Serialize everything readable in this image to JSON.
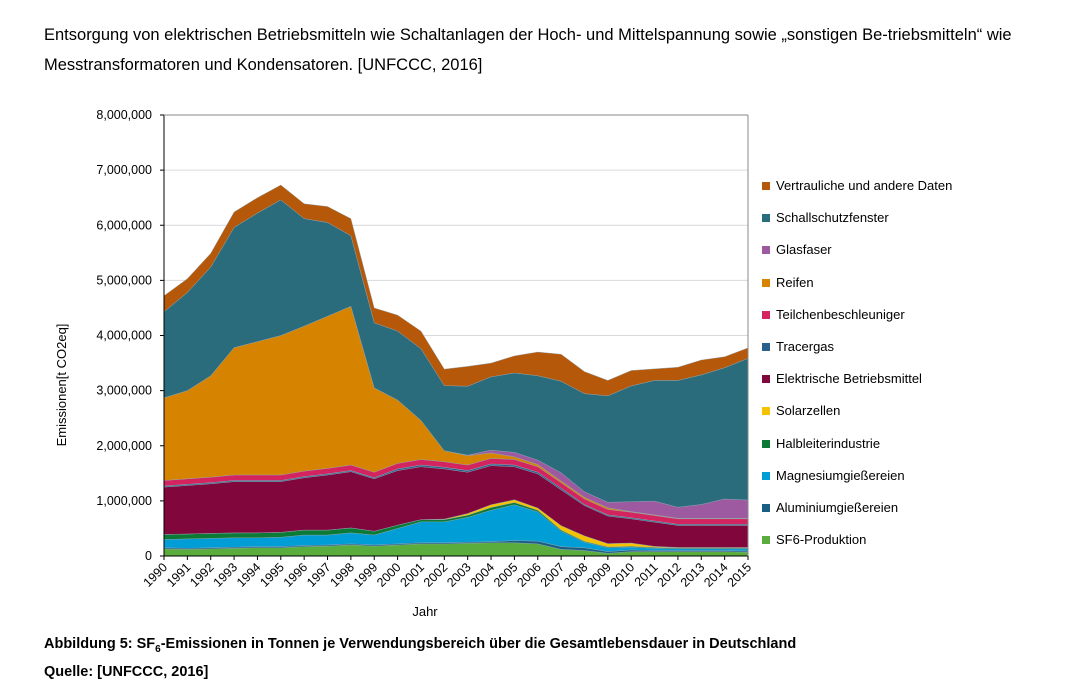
{
  "document": {
    "paragraph": "Entsorgung von elektrischen Betriebsmitteln wie Schaltanlagen der Hoch- und Mittelspannung sowie „sonstigen Be-triebsmitteln“ wie Messtransformatoren und Kondensatoren. [UNFCCC, 2016]",
    "caption_prefix": "Abbildung 5: SF",
    "caption_sub": "6",
    "caption_rest": "-Emissionen in Tonnen je Verwendungsbereich über die Gesamtlebensdauer in Deutschland",
    "source": "Quelle: [UNFCCC, 2016]"
  },
  "chart_data": {
    "type": "area",
    "stacked": true,
    "xlabel": "Jahr",
    "ylabel": "Emissionen[t CO2eq]",
    "ylim": [
      0,
      8000000
    ],
    "yticks": [
      "0",
      "1,000,000",
      "2,000,000",
      "3,000,000",
      "4,000,000",
      "5,000,000",
      "6,000,000",
      "7,000,000",
      "8,000,000"
    ],
    "grid": true,
    "legend_position": "right",
    "x": [
      1990,
      1991,
      1992,
      1993,
      1994,
      1995,
      1996,
      1997,
      1998,
      1999,
      2000,
      2001,
      2002,
      2003,
      2004,
      2005,
      2006,
      2007,
      2008,
      2009,
      2010,
      2011,
      2012,
      2013,
      2014,
      2015
    ],
    "series": [
      {
        "name": "SF6-Produktion",
        "color": "#5aac3c",
        "values": [
          130000,
          120000,
          130000,
          140000,
          150000,
          150000,
          170000,
          180000,
          200000,
          180000,
          200000,
          220000,
          220000,
          230000,
          240000,
          240000,
          220000,
          120000,
          100000,
          50000,
          80000,
          80000,
          80000,
          80000,
          80000,
          70000
        ]
      },
      {
        "name": "Aluminiumgießereien",
        "color": "#1a5e82",
        "values": [
          20000,
          20000,
          20000,
          20000,
          20000,
          20000,
          20000,
          20000,
          20000,
          20000,
          20000,
          20000,
          20000,
          20000,
          20000,
          40000,
          50000,
          50000,
          50000,
          30000,
          30000,
          20000,
          20000,
          20000,
          20000,
          20000
        ]
      },
      {
        "name": "Magnesiumgießereien",
        "color": "#009dd6",
        "values": [
          150000,
          170000,
          170000,
          170000,
          160000,
          170000,
          190000,
          180000,
          200000,
          180000,
          280000,
          380000,
          380000,
          450000,
          570000,
          650000,
          530000,
          280000,
          100000,
          70000,
          50000,
          40000,
          30000,
          30000,
          30000,
          40000
        ]
      },
      {
        "name": "Halbleiterindustrie",
        "color": "#0a7a35",
        "values": [
          90000,
          90000,
          90000,
          90000,
          90000,
          90000,
          90000,
          90000,
          90000,
          70000,
          60000,
          40000,
          40000,
          40000,
          50000,
          40000,
          30000,
          20000,
          15000,
          15000,
          15000,
          15000,
          15000,
          15000,
          15000,
          15000
        ]
      },
      {
        "name": "Solarzellen",
        "color": "#f5c200",
        "values": [
          0,
          0,
          0,
          0,
          0,
          0,
          0,
          0,
          0,
          0,
          0,
          0,
          10000,
          30000,
          50000,
          50000,
          40000,
          80000,
          100000,
          60000,
          60000,
          20000,
          10000,
          10000,
          10000,
          10000
        ]
      },
      {
        "name": "Elektrische Betriebsmittel",
        "color": "#80063b",
        "values": [
          860000,
          880000,
          900000,
          930000,
          930000,
          920000,
          950000,
          1000000,
          1020000,
          950000,
          990000,
          960000,
          910000,
          750000,
          710000,
          600000,
          620000,
          650000,
          550000,
          500000,
          440000,
          440000,
          400000,
          400000,
          400000,
          400000
        ]
      },
      {
        "name": "Tracergas",
        "color": "#2a5f8a",
        "values": [
          20000,
          20000,
          20000,
          20000,
          20000,
          20000,
          20000,
          20000,
          20000,
          20000,
          30000,
          30000,
          30000,
          30000,
          30000,
          30000,
          30000,
          30000,
          20000,
          20000,
          20000,
          20000,
          20000,
          20000,
          20000,
          20000
        ]
      },
      {
        "name": "Teilchenbeschleuniger",
        "color": "#d4245f",
        "values": [
          100000,
          100000,
          100000,
          100000,
          100000,
          100000,
          100000,
          100000,
          100000,
          100000,
          100000,
          100000,
          100000,
          100000,
          100000,
          100000,
          100000,
          100000,
          100000,
          100000,
          100000,
          100000,
          100000,
          100000,
          100000,
          100000
        ]
      },
      {
        "name": "Reifen",
        "color": "#d68400",
        "values": [
          1500000,
          1600000,
          1840000,
          2310000,
          2420000,
          2530000,
          2630000,
          2760000,
          2880000,
          1530000,
          1150000,
          710000,
          200000,
          170000,
          100000,
          50000,
          40000,
          30000,
          30000,
          30000,
          10000,
          10000,
          10000,
          10000,
          10000,
          10000
        ]
      },
      {
        "name": "Glasfaser",
        "color": "#9d5aa0",
        "values": [
          0,
          0,
          0,
          0,
          0,
          0,
          0,
          0,
          0,
          0,
          0,
          0,
          0,
          10000,
          50000,
          80000,
          80000,
          150000,
          100000,
          100000,
          180000,
          250000,
          200000,
          250000,
          350000,
          330000
        ]
      },
      {
        "name": "Schallschutzfenster",
        "color": "#2a6b7c",
        "values": [
          1560000,
          1780000,
          1970000,
          2180000,
          2330000,
          2460000,
          1950000,
          1700000,
          1280000,
          1180000,
          1250000,
          1300000,
          1180000,
          1250000,
          1330000,
          1440000,
          1530000,
          1660000,
          1780000,
          1930000,
          2100000,
          2190000,
          2300000,
          2350000,
          2380000,
          2570000
        ]
      },
      {
        "name": "Vertrauliche und andere Daten",
        "color": "#b5580a",
        "values": [
          290000,
          250000,
          250000,
          280000,
          280000,
          270000,
          270000,
          290000,
          310000,
          270000,
          290000,
          320000,
          300000,
          360000,
          250000,
          310000,
          430000,
          490000,
          400000,
          280000,
          280000,
          210000,
          240000,
          270000,
          200000,
          190000
        ]
      }
    ]
  }
}
